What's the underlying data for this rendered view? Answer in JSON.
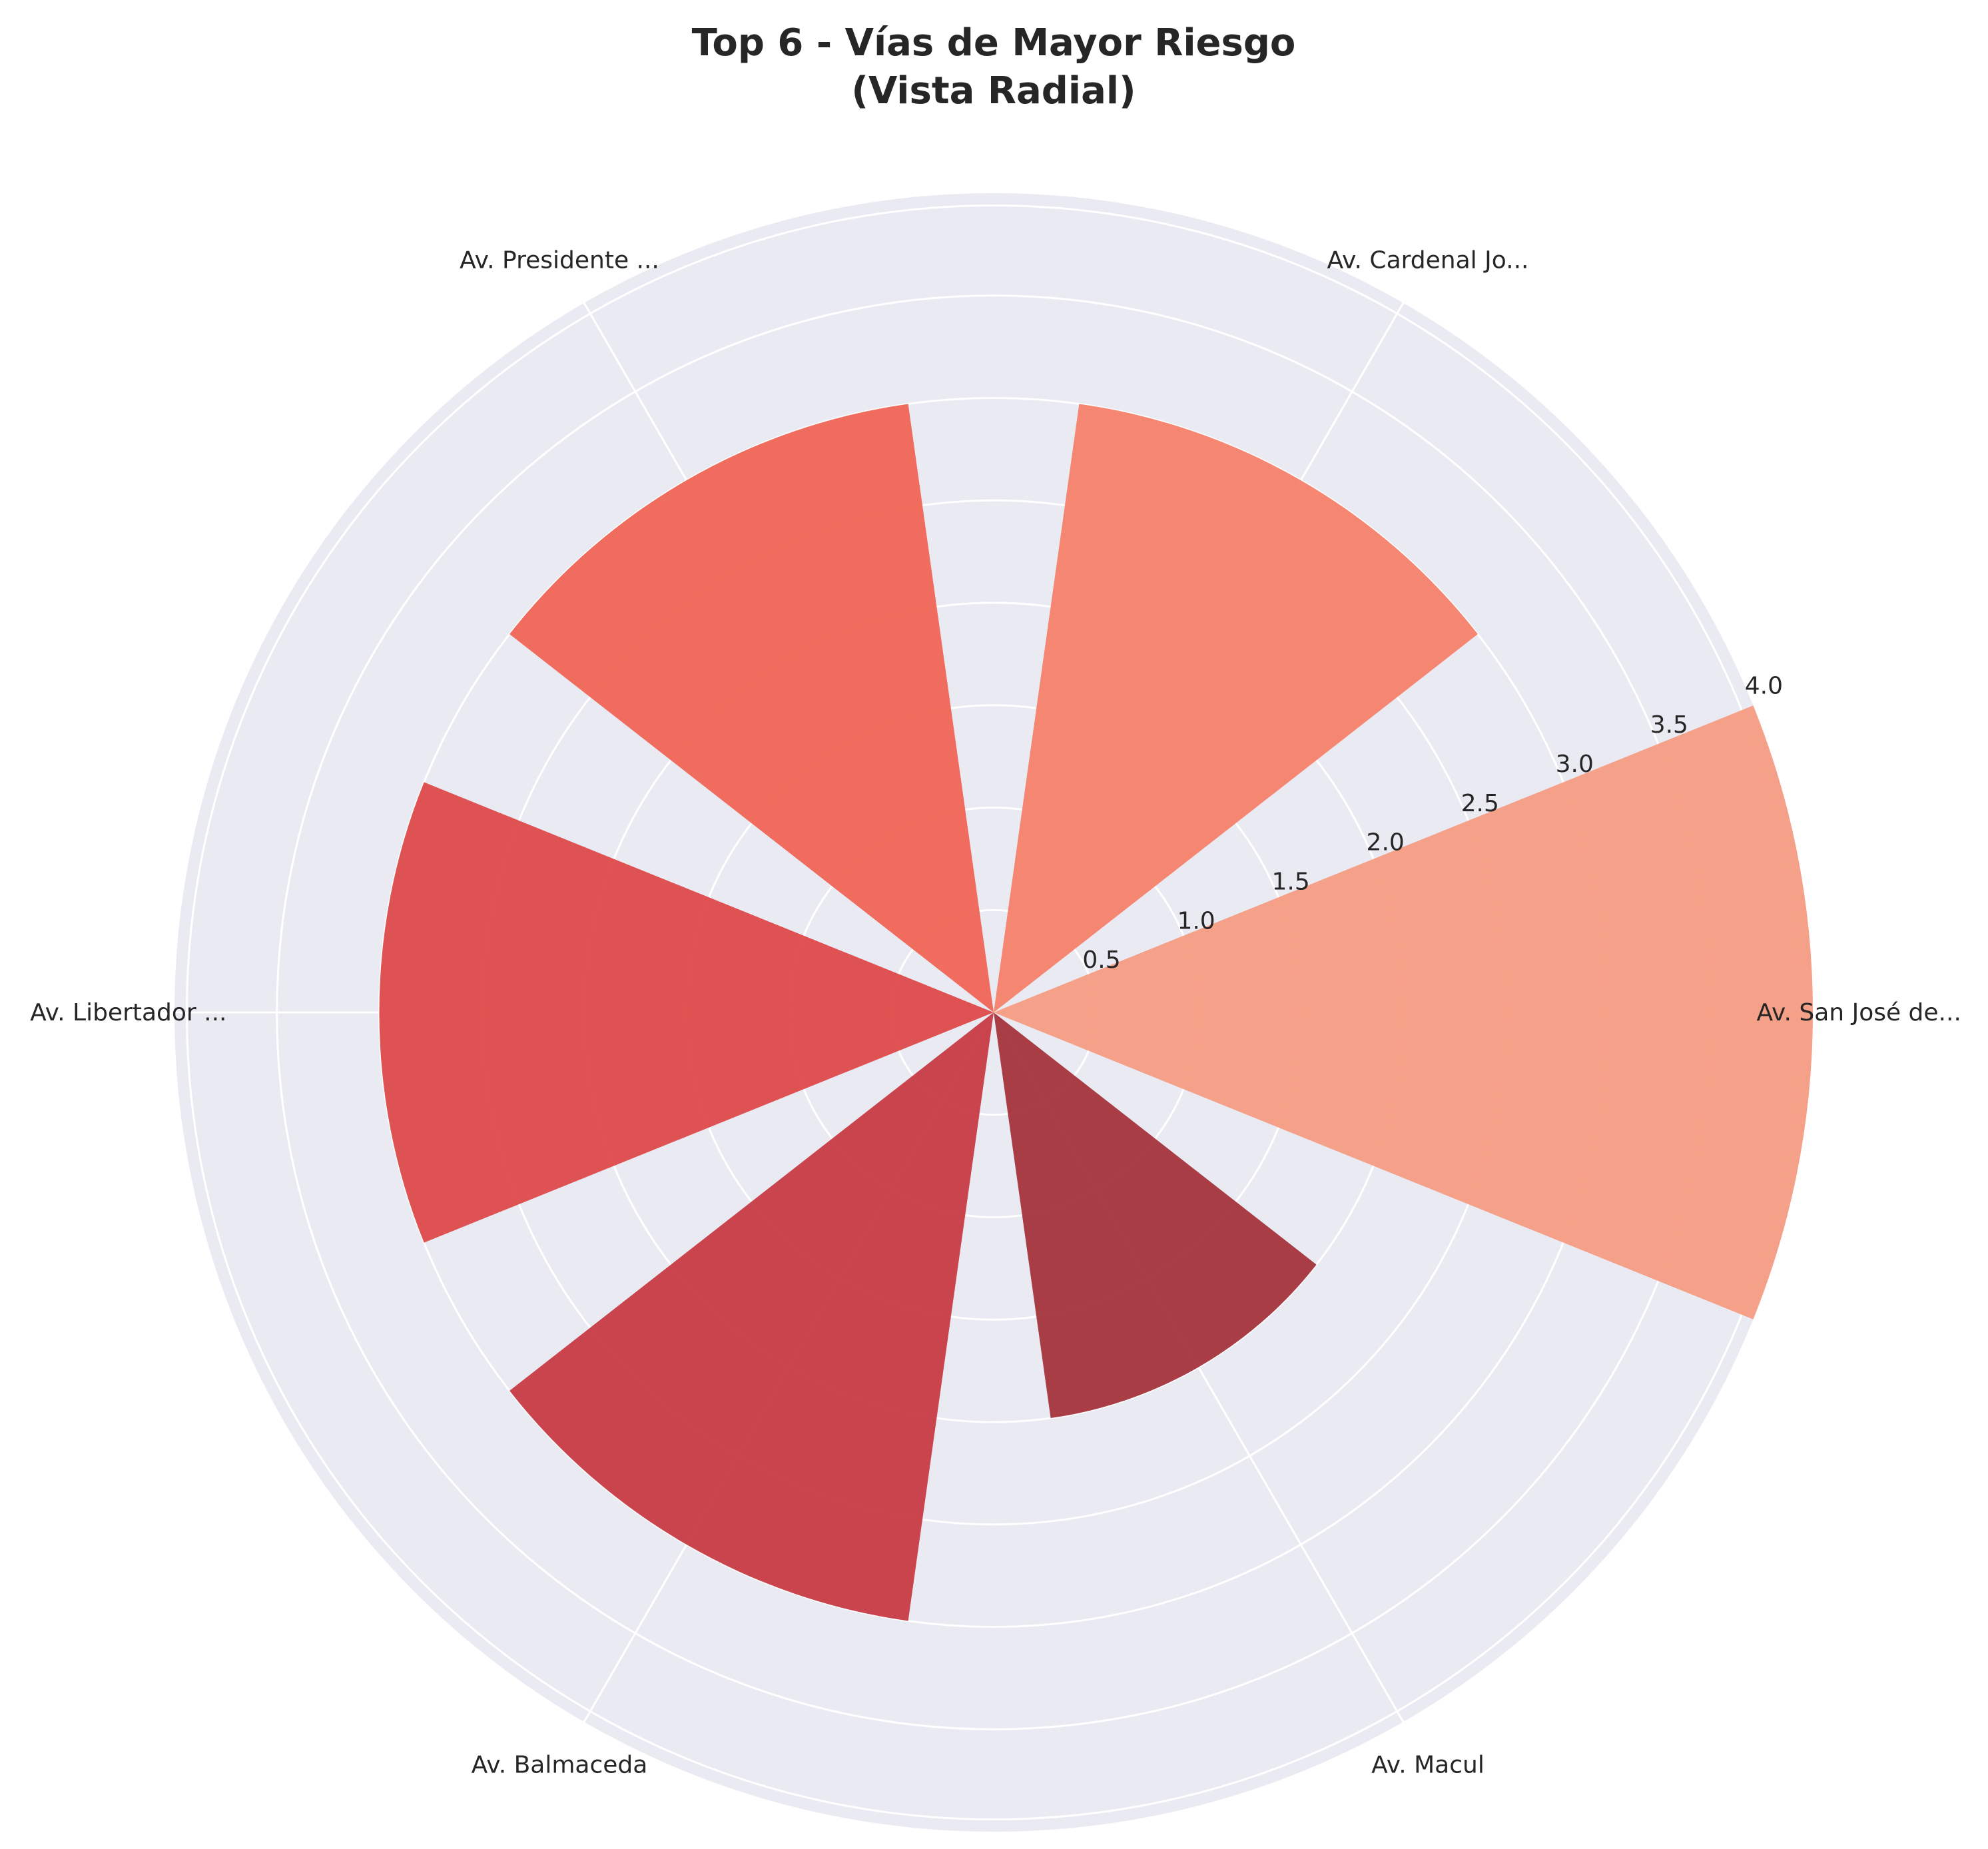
{
  "chart_data": {
    "type": "polar-bar",
    "title_lines": [
      "Top 6 - Vías de Mayor Riesgo",
      "(Vista Radial)"
    ],
    "categories": [
      "Av. San José de...",
      "Av. Cardenal Jo...",
      "Av. Presidente ...",
      "Av. Libertador ...",
      "Av. Balmaceda",
      "Av. Macul"
    ],
    "values": [
      4.0,
      3.0,
      3.0,
      3.0,
      3.0,
      2.0
    ],
    "rlim": [
      0,
      4.0
    ],
    "r_ticks": [
      "0.5",
      "1.0",
      "1.5",
      "2.0",
      "2.5",
      "3.0",
      "3.5",
      "4.0"
    ],
    "background_color": "#eaeaf2",
    "grid": true,
    "colors": [
      "#f59c82",
      "#f5816a",
      "#ef6555",
      "#dd4a4a",
      "#c73b43",
      "#a5343c"
    ]
  }
}
